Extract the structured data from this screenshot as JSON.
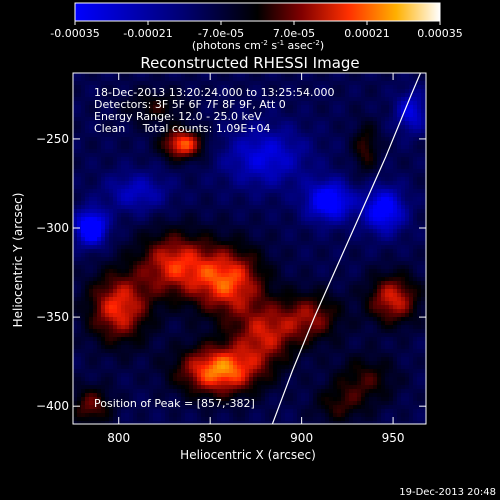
{
  "chart_data": {
    "type": "heatmap",
    "title": "Reconstructed RHESSI Image",
    "colorbar": {
      "ticks": [
        "-0.00035",
        "-0.00021",
        "-7.0e-05",
        "7.0e-05",
        "0.00021",
        "0.00035"
      ],
      "units_main": "(photons cm",
      "units_exp1": "-2",
      "units_mid": " s",
      "units_exp2": "-1",
      "units_end": " asec",
      "units_exp3": "-2",
      "units_close": ")",
      "range": [
        -0.00035,
        0.00035
      ],
      "colors": [
        "#0000ff",
        "#000060",
        "#000000",
        "#700000",
        "#ff2000",
        "#ffb000",
        "#ffffff"
      ]
    },
    "xlabel": "Heliocentric X (arcsec)",
    "ylabel": "Heliocentric Y (arcsec)",
    "xlim": [
      775,
      968
    ],
    "ylim": [
      -410,
      -213
    ],
    "xticks": [
      800,
      850,
      900,
      950
    ],
    "yticks": [
      -250,
      -300,
      -350,
      -400
    ],
    "xtick_labels": [
      "800",
      "850",
      "900",
      "950"
    ],
    "ytick_labels": [
      "−250",
      "−300",
      "−350",
      "−400"
    ],
    "annotations": {
      "line1": "18-Dec-2013 13:20:24.000 to 13:25:54.000",
      "line2": "Detectors: 3F 5F 6F 7F 8F 9F, Att 0",
      "line3": "Energy Range: 12.0 - 25.0 keV",
      "line4": "Clean     Total counts: 1.09E+04",
      "peak": "Position of Peak = [857,-382]"
    },
    "limb": [
      [
        884,
        -410
      ],
      [
        895,
        -380
      ],
      [
        907,
        -350
      ],
      [
        920,
        -320
      ],
      [
        933,
        -290
      ],
      [
        946,
        -260
      ],
      [
        960,
        -225
      ],
      [
        965,
        -213
      ]
    ],
    "sources": [
      {
        "x": 835,
        "y": -253,
        "amp": 0.00032,
        "sx": 8,
        "sy": 6
      },
      {
        "x": 820,
        "y": -232,
        "amp": 0.00012,
        "sx": 12,
        "sy": 7
      },
      {
        "x": 830,
        "y": -320,
        "amp": 0.00026,
        "sx": 14,
        "sy": 13
      },
      {
        "x": 800,
        "y": -345,
        "amp": 0.00028,
        "sx": 12,
        "sy": 14
      },
      {
        "x": 860,
        "y": -330,
        "amp": 0.0003,
        "sx": 14,
        "sy": 14
      },
      {
        "x": 855,
        "y": -380,
        "amp": 0.00035,
        "sx": 16,
        "sy": 10
      },
      {
        "x": 880,
        "y": -360,
        "amp": 0.00022,
        "sx": 12,
        "sy": 12
      },
      {
        "x": 905,
        "y": -350,
        "amp": 0.0002,
        "sx": 12,
        "sy": 10
      },
      {
        "x": 950,
        "y": -340,
        "amp": 0.00026,
        "sx": 10,
        "sy": 10
      },
      {
        "x": 935,
        "y": -385,
        "amp": 0.00014,
        "sx": 12,
        "sy": 10
      },
      {
        "x": 935,
        "y": -255,
        "amp": 0.00015,
        "sx": 5,
        "sy": 10
      },
      {
        "x": 785,
        "y": -400,
        "amp": 0.00018,
        "sx": 8,
        "sy": 8
      },
      {
        "x": 920,
        "y": -400,
        "amp": 0.00012,
        "sx": 10,
        "sy": 8
      },
      {
        "x": 785,
        "y": -300,
        "amp": -0.00035,
        "sx": 6,
        "sy": 7
      },
      {
        "x": 915,
        "y": -285,
        "amp": -0.0003,
        "sx": 9,
        "sy": 8
      },
      {
        "x": 945,
        "y": -290,
        "amp": -0.00028,
        "sx": 8,
        "sy": 9
      },
      {
        "x": 880,
        "y": -260,
        "amp": -0.0002,
        "sx": 16,
        "sy": 12
      },
      {
        "x": 960,
        "y": -235,
        "amp": -0.0002,
        "sx": 6,
        "sy": 8
      },
      {
        "x": 810,
        "y": -280,
        "amp": -0.00016,
        "sx": 12,
        "sy": 8
      }
    ]
  },
  "timestamp": "19-Dec-2013 20:48"
}
